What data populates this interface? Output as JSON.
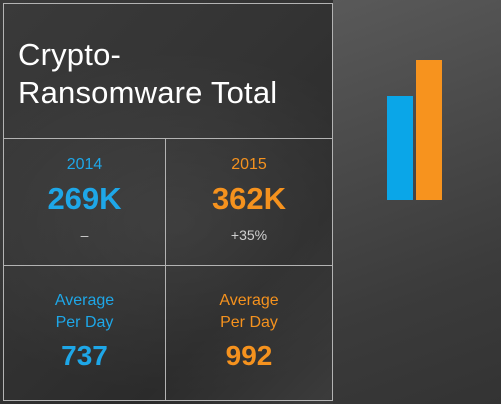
{
  "title": {
    "line1": "Crypto-",
    "line2": "Ransomware Total"
  },
  "stats": {
    "y2014": {
      "year": "2014",
      "value": "269K",
      "change": "–"
    },
    "y2015": {
      "year": "2015",
      "value": "362K",
      "change": "+35%"
    }
  },
  "average": {
    "y2014": {
      "line1": "Average",
      "line2": "Per Day",
      "value": "737"
    },
    "y2015": {
      "line1": "Average",
      "line2": "Per Day",
      "value": "992"
    }
  },
  "bars": {
    "y2014_value": 269,
    "y2015_value": 362,
    "max": 362
  },
  "colors": {
    "blue": "#1ea7e8",
    "orange": "#f5921e"
  }
}
